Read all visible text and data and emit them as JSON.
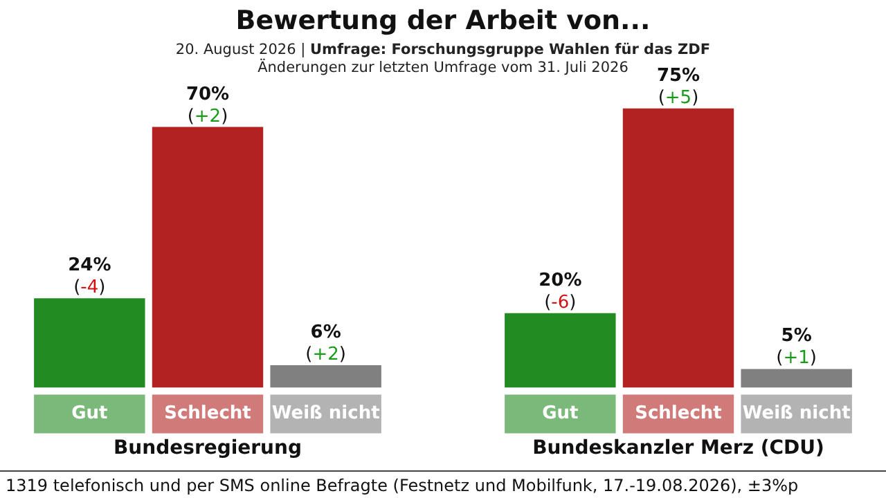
{
  "chart_data": [
    {
      "type": "bar",
      "title": "Bewertung der Arbeit von...",
      "subtitle": "20. August 2026 | Umfrage: Forschungsgruppe Wahlen für das ZDF\nÄnderungen zur letzten Umfrage vom 31. Juli 2026",
      "xlabel": "Bundesregierung",
      "categories": [
        "Gut",
        "Schlecht",
        "Weiß nicht"
      ],
      "values": [
        24,
        70,
        6
      ],
      "colors": [
        "#228b22",
        "#b22222",
        "#808080"
      ],
      "value_labels": [
        "24%",
        "70%",
        "6%"
      ],
      "legend": false,
      "grid": false,
      "annotations": [
        {
          "text": "(-4)",
          "x": "Gut",
          "y": 24
        },
        {
          "text": "(+2)",
          "x": "Schlecht",
          "y": 70
        },
        {
          "text": "(+2)",
          "x": "Weiß nicht",
          "y": 6
        },
        "1319 telefonisch und per SMS online Befragte (Festnetz und Mobilfunk, 17.-19.08.2026), ±3%p"
      ]
    },
    {
      "type": "bar",
      "xlabel": "Bundeskanzler Merz (CDU)",
      "categories": [
        "Gut",
        "Schlecht",
        "Weiß nicht"
      ],
      "values": [
        20,
        75,
        5
      ],
      "colors": [
        "#228b22",
        "#b22222",
        "#808080"
      ],
      "value_labels": [
        "20%",
        "75%",
        "5%"
      ],
      "legend": false,
      "grid": false,
      "annotations": [
        {
          "text": "(-6)",
          "x": "Gut",
          "y": 20
        },
        {
          "text": "(+5)",
          "x": "Schlecht",
          "y": 75
        },
        {
          "text": "(+1)",
          "x": "Weiß nicht",
          "y": 5
        }
      ]
    }
  ]
}
